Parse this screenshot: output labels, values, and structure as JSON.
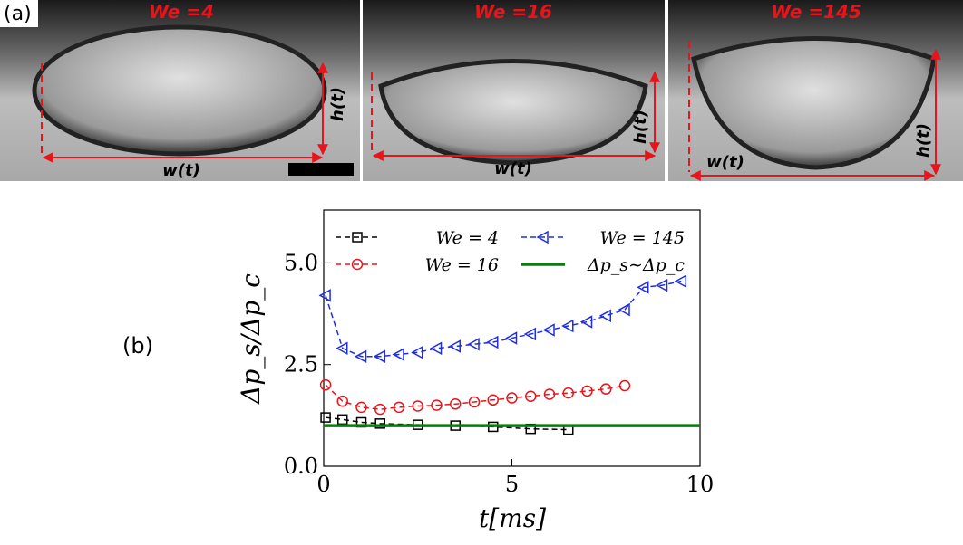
{
  "panel_a": {
    "label": "(a)",
    "photos": [
      {
        "title": "We =4",
        "width_label": "w(t)",
        "height_label": "h(t)"
      },
      {
        "title": "We =16",
        "width_label": "w(t)",
        "height_label": "h(t)"
      },
      {
        "title": "We =145",
        "width_label": "w(t)",
        "height_label": "h(t)"
      }
    ]
  },
  "panel_b": {
    "label": "(b)"
  },
  "chart_data": {
    "type": "line",
    "xlabel": "t[ms]",
    "ylabel": "Δp_s/Δp_c",
    "xlim": [
      0,
      10
    ],
    "ylim": [
      0,
      6.3
    ],
    "xticks": [
      0,
      5,
      10
    ],
    "yticks": [
      {
        "value": 0,
        "label": "0.0"
      },
      {
        "value": 2.5,
        "label": "2.5"
      },
      {
        "value": 5,
        "label": "5.0"
      }
    ],
    "legend": "top",
    "series": [
      {
        "name": "We = 4",
        "color": "#000000",
        "marker": "square",
        "dashed": true,
        "x": [
          0.05,
          0.5,
          1,
          1.5,
          2.5,
          3.5,
          4.5,
          5.5,
          6.5
        ],
        "values": [
          1.2,
          1.15,
          1.08,
          1.05,
          1.02,
          1.0,
          0.97,
          0.92,
          0.9
        ]
      },
      {
        "name": "We = 16",
        "color": "#e8141c",
        "marker": "circle",
        "dashed": true,
        "x": [
          0.05,
          0.5,
          1,
          1.5,
          2,
          2.5,
          3,
          3.5,
          4,
          4.5,
          5,
          5.5,
          6,
          6.5,
          7,
          7.5,
          8
        ],
        "values": [
          2.0,
          1.6,
          1.45,
          1.4,
          1.45,
          1.48,
          1.5,
          1.53,
          1.58,
          1.63,
          1.68,
          1.72,
          1.77,
          1.8,
          1.85,
          1.9,
          1.98
        ]
      },
      {
        "name": "We = 145",
        "color": "#1f2fe0",
        "marker": "triangle-left",
        "dashed": true,
        "x": [
          0.05,
          0.5,
          1,
          1.5,
          2,
          2.5,
          3,
          3.5,
          4,
          4.5,
          5,
          5.5,
          6,
          6.5,
          7,
          7.5,
          8,
          8.5,
          9,
          9.5
        ],
        "values": [
          4.2,
          2.9,
          2.7,
          2.7,
          2.75,
          2.8,
          2.9,
          2.95,
          3.0,
          3.05,
          3.15,
          3.25,
          3.35,
          3.45,
          3.55,
          3.7,
          3.85,
          4.4,
          4.45,
          4.55
        ]
      },
      {
        "name": "Δp_s∼Δp_c",
        "color": "#0f7a0f",
        "marker": "none",
        "dashed": false,
        "x": [
          0,
          10
        ],
        "values": [
          1.0,
          1.0
        ]
      }
    ]
  }
}
